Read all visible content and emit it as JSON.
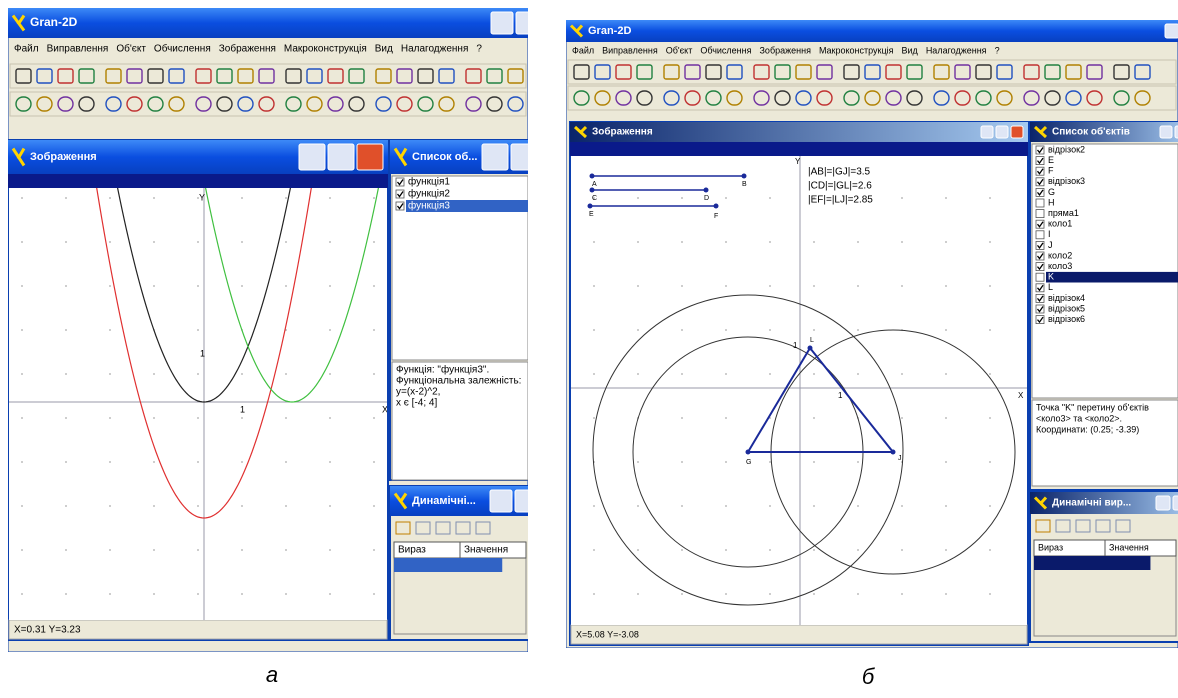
{
  "screenshots": [
    {
      "app_title": "Gran-2D",
      "menu": [
        "Файл",
        "Виправлення",
        "Об'єкт",
        "Обчислення",
        "Зображення",
        "Макроконструкція",
        "Вид",
        "Налагодження",
        "?"
      ],
      "canvas_title": "Зображення",
      "axis_labels": [
        "Y",
        "X",
        "1",
        "1"
      ],
      "objects_title": "Список об...",
      "objects": [
        {
          "name": "функція1",
          "checked": true
        },
        {
          "name": "функція2",
          "checked": true
        },
        {
          "name": "функція3",
          "checked": true,
          "selected": true
        }
      ],
      "info": [
        "Функція: \"функція3\".",
        "Функціональна залежність:",
        "y=(x-2)^2,",
        "x є [-4; 4]"
      ],
      "dynamic_title": "Динамічні...",
      "dynamic_columns": [
        "Вираз",
        "Значення"
      ],
      "status": "X=0.31 Y=3.23",
      "caption": "а"
    },
    {
      "app_title": "Gran-2D",
      "menu": [
        "Файл",
        "Виправлення",
        "Об'єкт",
        "Обчислення",
        "Зображення",
        "Макроконструкція",
        "Вид",
        "Налагодження",
        "?"
      ],
      "canvas_title": "Зображення",
      "axis_labels": [
        "Y",
        "X",
        "1",
        "1"
      ],
      "point_labels": [
        "A",
        "B",
        "C",
        "D",
        "E",
        "F",
        "G",
        "J",
        "L"
      ],
      "measurements": [
        "|AB|=|GJ|=3.5",
        "|CD|=|GL|=2.6",
        "|EF|=|LJ|=2.85"
      ],
      "objects_title": "Список об'єктів",
      "objects": [
        {
          "name": "відрізок2",
          "checked": true
        },
        {
          "name": "E",
          "checked": true
        },
        {
          "name": "F",
          "checked": true
        },
        {
          "name": "відрізок3",
          "checked": true
        },
        {
          "name": "G",
          "checked": true
        },
        {
          "name": "H",
          "checked": false
        },
        {
          "name": "пряма1",
          "checked": false
        },
        {
          "name": "коло1",
          "checked": true
        },
        {
          "name": "I",
          "checked": false
        },
        {
          "name": "J",
          "checked": true
        },
        {
          "name": "коло2",
          "checked": true
        },
        {
          "name": "коло3",
          "checked": true
        },
        {
          "name": "K",
          "checked": false,
          "selected": true
        },
        {
          "name": "L",
          "checked": true
        },
        {
          "name": "відрізок4",
          "checked": true
        },
        {
          "name": "відрізок5",
          "checked": true
        },
        {
          "name": "відрізок6",
          "checked": true
        }
      ],
      "info": [
        "Точка \"K\" перетину об'єктів",
        "<коло3> та <коло2>.",
        "Координати: (0.25; -3.39)"
      ],
      "dynamic_title": "Динамічні вир...",
      "dynamic_columns": [
        "Вираз",
        "Значення"
      ],
      "status": "X=5.08 Y=-3.08",
      "caption": "б"
    }
  ]
}
